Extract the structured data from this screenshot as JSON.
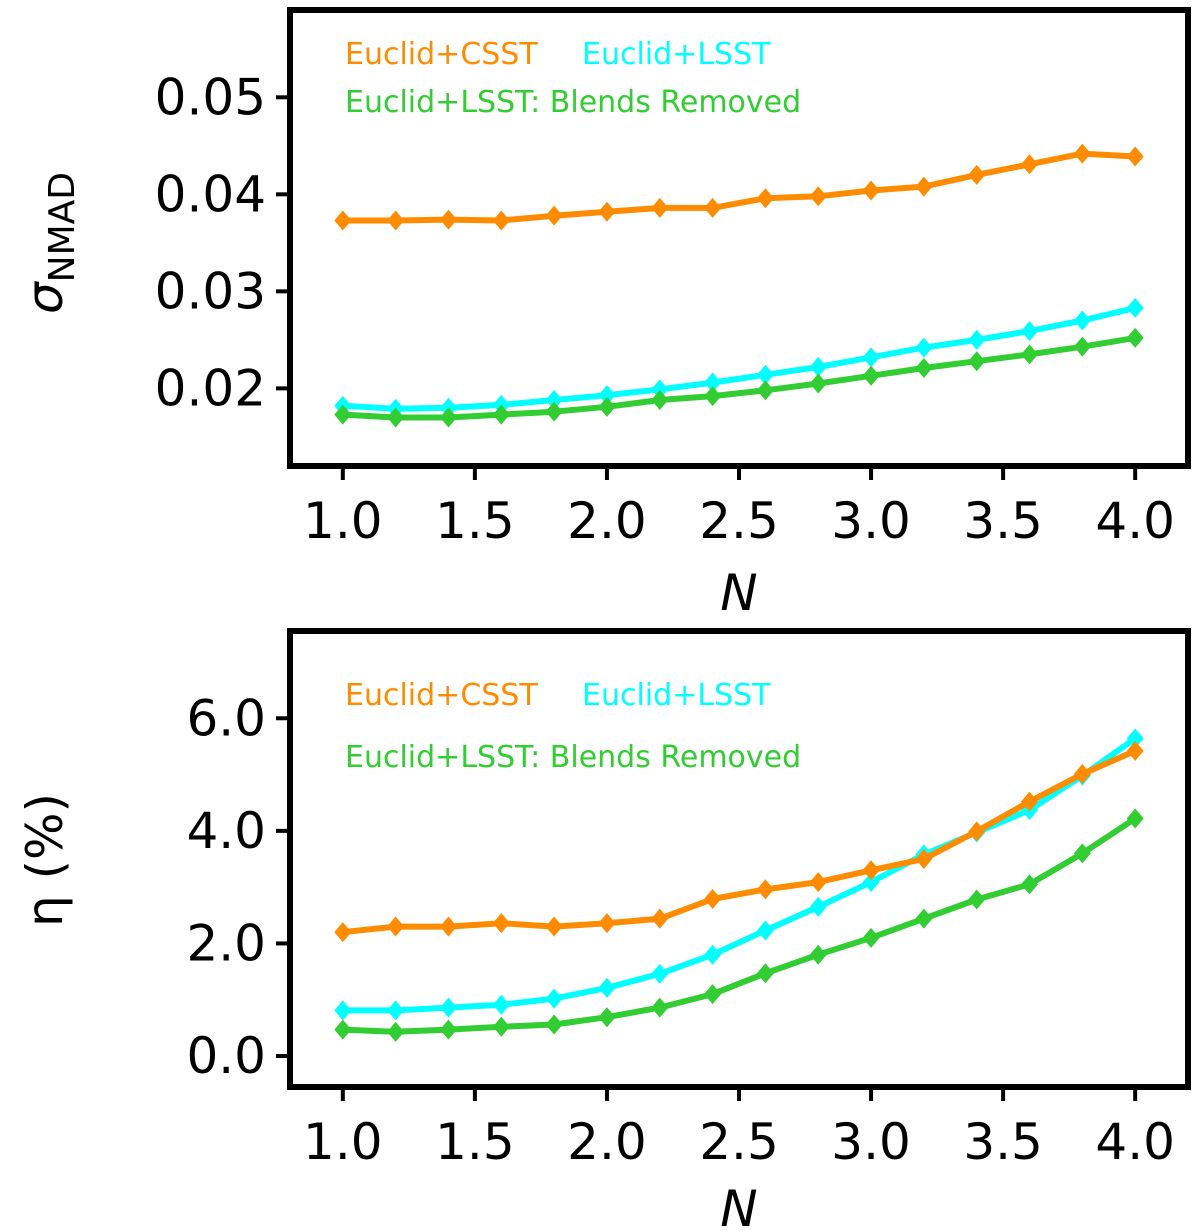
{
  "chart_data": [
    {
      "type": "line",
      "ylabel_symbol": "σ",
      "ylabel_subscript": "NMAD",
      "xlabel": "N",
      "xlim": [
        0.8,
        4.2
      ],
      "ylim": [
        0.012,
        0.059
      ],
      "xticks": [
        1.0,
        1.5,
        2.0,
        2.5,
        3.0,
        3.5,
        4.0
      ],
      "xtick_labels": [
        "1.0",
        "1.5",
        "2.0",
        "2.5",
        "3.0",
        "3.5",
        "4.0"
      ],
      "yticks": [
        0.02,
        0.03,
        0.04,
        0.05
      ],
      "ytick_labels": [
        "0.02",
        "0.03",
        "0.04",
        "0.05"
      ],
      "grid": false,
      "legend_placement": "top-left",
      "x": [
        1.0,
        1.2,
        1.4,
        1.6,
        1.8,
        2.0,
        2.2,
        2.4,
        2.6,
        2.8,
        3.0,
        3.2,
        3.4,
        3.6,
        3.8,
        4.0
      ],
      "series": [
        {
          "name": "Euclid+CSST",
          "color": "#ff8c00",
          "marker": "diamond",
          "values": [
            0.0373,
            0.0373,
            0.0374,
            0.0373,
            0.0378,
            0.0382,
            0.0386,
            0.0386,
            0.0396,
            0.0398,
            0.0404,
            0.0408,
            0.042,
            0.0431,
            0.0442,
            0.0439
          ]
        },
        {
          "name": "Euclid+LSST",
          "color": "#00ffff",
          "marker": "diamond",
          "values": [
            0.0182,
            0.0179,
            0.018,
            0.0183,
            0.0188,
            0.0193,
            0.0199,
            0.0206,
            0.0214,
            0.0222,
            0.0232,
            0.0242,
            0.025,
            0.0259,
            0.027,
            0.0283
          ]
        },
        {
          "name": "Euclid+LSST: Blends Removed",
          "color": "#32cd32",
          "marker": "diamond",
          "values": [
            0.0173,
            0.017,
            0.017,
            0.0173,
            0.0176,
            0.0181,
            0.0188,
            0.0192,
            0.0198,
            0.0205,
            0.0213,
            0.0221,
            0.0228,
            0.0235,
            0.0243,
            0.0252
          ]
        }
      ]
    },
    {
      "type": "line",
      "ylabel": "η (%)",
      "xlabel": "N",
      "xlim": [
        0.8,
        4.2
      ],
      "ylim": [
        -0.55,
        7.55
      ],
      "xticks": [
        1.0,
        1.5,
        2.0,
        2.5,
        3.0,
        3.5,
        4.0
      ],
      "xtick_labels": [
        "1.0",
        "1.5",
        "2.0",
        "2.5",
        "3.0",
        "3.5",
        "4.0"
      ],
      "yticks": [
        0.0,
        2.0,
        4.0,
        6.0
      ],
      "ytick_labels": [
        "0.0",
        "2.0",
        "4.0",
        "6.0"
      ],
      "grid": false,
      "legend_placement": "top-left",
      "x": [
        1.0,
        1.2,
        1.4,
        1.6,
        1.8,
        2.0,
        2.2,
        2.4,
        2.6,
        2.8,
        3.0,
        3.2,
        3.4,
        3.6,
        3.8,
        4.0
      ],
      "series": [
        {
          "name": "Euclid+CSST",
          "color": "#ff8c00",
          "marker": "diamond",
          "values": [
            2.2,
            2.3,
            2.3,
            2.36,
            2.3,
            2.36,
            2.44,
            2.79,
            2.96,
            3.09,
            3.3,
            3.5,
            3.99,
            4.52,
            5.01,
            5.42
          ]
        },
        {
          "name": "Euclid+LSST",
          "color": "#00ffff",
          "marker": "diamond",
          "values": [
            0.81,
            0.81,
            0.86,
            0.91,
            1.02,
            1.21,
            1.46,
            1.8,
            2.23,
            2.65,
            3.09,
            3.58,
            3.97,
            4.37,
            4.98,
            5.64
          ]
        },
        {
          "name": "Euclid+LSST: Blends Removed",
          "color": "#32cd32",
          "marker": "diamond",
          "values": [
            0.47,
            0.43,
            0.47,
            0.52,
            0.56,
            0.69,
            0.86,
            1.1,
            1.47,
            1.8,
            2.1,
            2.44,
            2.78,
            3.05,
            3.6,
            4.22
          ]
        }
      ]
    }
  ]
}
